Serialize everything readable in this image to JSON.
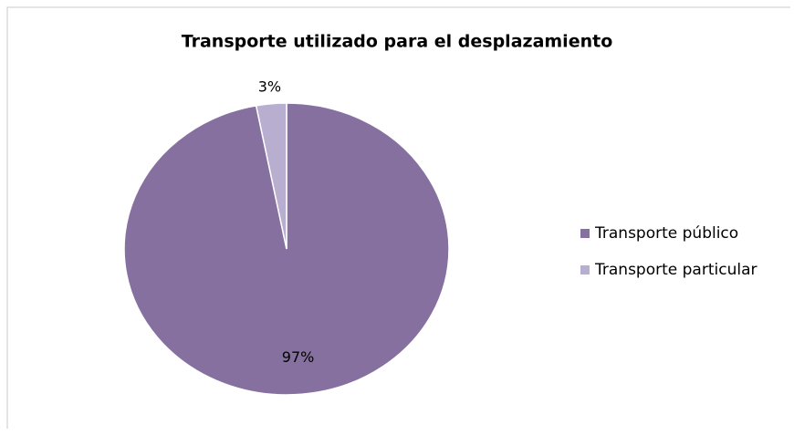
{
  "chart_data": {
    "type": "pie",
    "title": "Transporte utilizado para el desplazamiento",
    "categories": [
      "Transporte público",
      "Transporte particular"
    ],
    "values": [
      97,
      3
    ],
    "value_labels": [
      "97%",
      "3%"
    ],
    "colors": [
      "#8670a0",
      "#b8aed0"
    ],
    "legend": "right"
  }
}
